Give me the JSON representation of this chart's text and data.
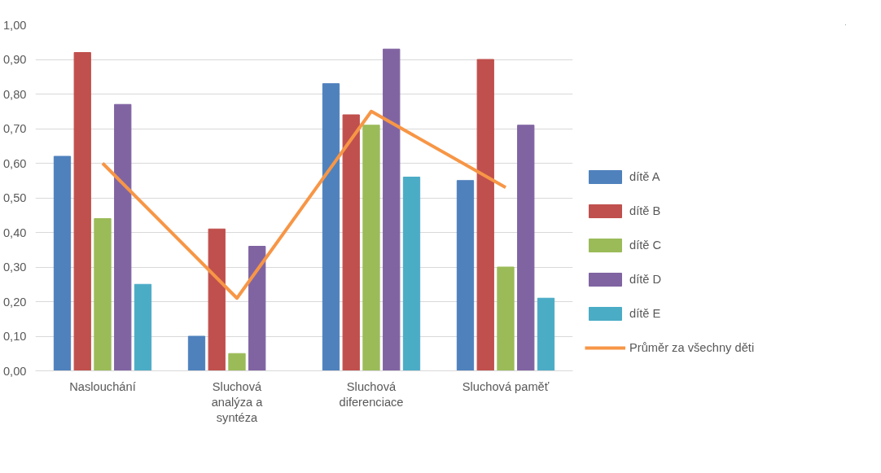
{
  "chart_data": {
    "type": "bar",
    "categories": [
      "Naslouchání",
      "Sluchová analýza a syntéza",
      "Sluchová diferenciace",
      "Sluchová paměť"
    ],
    "series": [
      {
        "name": "dítě A",
        "color": "#4f81bd",
        "values": [
          0.62,
          0.1,
          0.83,
          0.55
        ]
      },
      {
        "name": "dítě B",
        "color": "#c0504d",
        "values": [
          0.92,
          0.41,
          0.74,
          0.9
        ]
      },
      {
        "name": "dítě C",
        "color": "#9bbb59",
        "values": [
          0.44,
          0.05,
          0.71,
          0.3
        ]
      },
      {
        "name": "dítě D",
        "color": "#8064a2",
        "values": [
          0.77,
          0.36,
          0.93,
          0.71
        ]
      },
      {
        "name": "dítě E",
        "color": "#4bacc6",
        "values": [
          0.25,
          null,
          0.56,
          0.21
        ]
      },
      {
        "name": "Průměr za všechny děti",
        "color": "#f79646",
        "type": "line",
        "values": [
          0.6,
          0.21,
          0.75,
          0.53
        ]
      }
    ],
    "ylim": [
      0,
      1
    ],
    "yticks": [
      {
        "value": 0,
        "label": "0,00"
      },
      {
        "value": 0.1,
        "label": "0,10"
      },
      {
        "value": 0.2,
        "label": "0,20"
      },
      {
        "value": 0.3,
        "label": "0,30"
      },
      {
        "value": 0.4,
        "label": "0,40"
      },
      {
        "value": 0.5,
        "label": "0,50"
      },
      {
        "value": 0.6,
        "label": "0,60"
      },
      {
        "value": 0.7,
        "label": "0,70"
      },
      {
        "value": 0.8,
        "label": "0,80"
      },
      {
        "value": 0.9,
        "label": "0,90"
      },
      {
        "value": 1.0,
        "label": "1,00"
      }
    ],
    "grid": "y",
    "legend": "right"
  }
}
